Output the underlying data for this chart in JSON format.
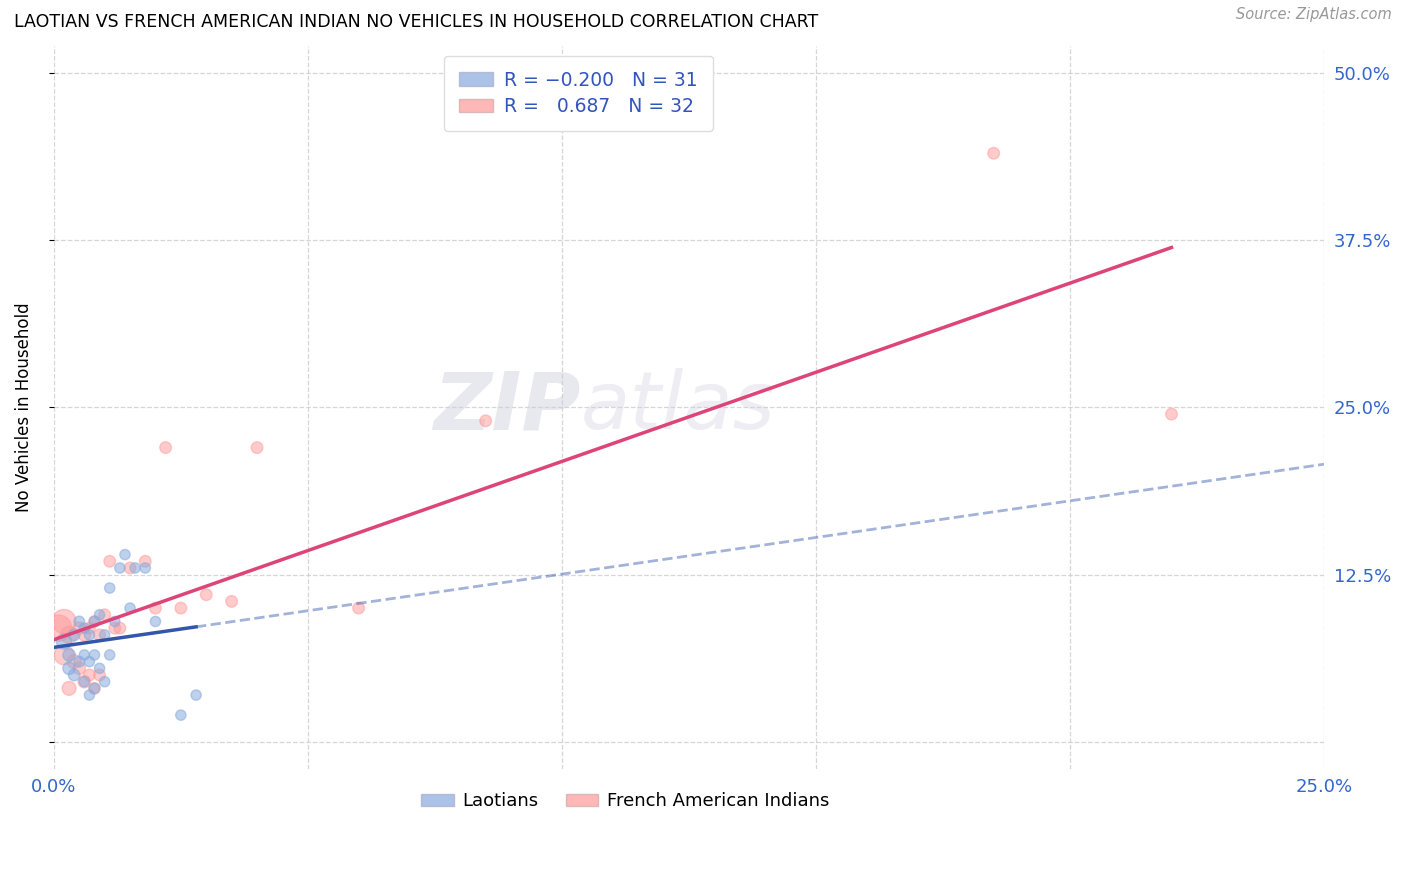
{
  "title": "LAOTIAN VS FRENCH AMERICAN INDIAN NO VEHICLES IN HOUSEHOLD CORRELATION CHART",
  "source": "Source: ZipAtlas.com",
  "ylabel": "No Vehicles in Household",
  "xlim": [
    0.0,
    0.25
  ],
  "ylim": [
    -0.02,
    0.52
  ],
  "ylim_data": [
    0.0,
    0.5
  ],
  "xticks": [
    0.0,
    0.05,
    0.1,
    0.15,
    0.2,
    0.25
  ],
  "yticks_right": [
    0.0,
    0.125,
    0.25,
    0.375,
    0.5
  ],
  "ytick_labels_right": [
    "",
    "12.5%",
    "25.0%",
    "37.5%",
    "50.0%"
  ],
  "xtick_labels": [
    "0.0%",
    "",
    "",
    "",
    "",
    "25.0%"
  ],
  "color_blue": "#88AADD",
  "color_pink": "#FF9999",
  "trendline_blue_color": "#3355AA",
  "trendline_pink_color": "#DD4477",
  "watermark_zip": "ZIP",
  "watermark_atlas": "atlas",
  "laotian_x": [
    0.002,
    0.003,
    0.003,
    0.004,
    0.004,
    0.005,
    0.005,
    0.006,
    0.006,
    0.006,
    0.007,
    0.007,
    0.007,
    0.008,
    0.008,
    0.008,
    0.009,
    0.009,
    0.01,
    0.01,
    0.011,
    0.011,
    0.012,
    0.013,
    0.014,
    0.015,
    0.016,
    0.018,
    0.02,
    0.025,
    0.028
  ],
  "laotian_y": [
    0.075,
    0.065,
    0.055,
    0.08,
    0.05,
    0.09,
    0.06,
    0.085,
    0.065,
    0.045,
    0.08,
    0.06,
    0.035,
    0.09,
    0.065,
    0.04,
    0.095,
    0.055,
    0.08,
    0.045,
    0.115,
    0.065,
    0.09,
    0.13,
    0.14,
    0.1,
    0.13,
    0.13,
    0.09,
    0.02,
    0.035
  ],
  "laotian_sizes": [
    120,
    80,
    80,
    70,
    70,
    60,
    60,
    55,
    55,
    55,
    55,
    55,
    55,
    55,
    55,
    55,
    55,
    55,
    55,
    55,
    55,
    55,
    55,
    55,
    55,
    55,
    55,
    55,
    55,
    55,
    55
  ],
  "french_x": [
    0.001,
    0.002,
    0.002,
    0.003,
    0.003,
    0.004,
    0.005,
    0.005,
    0.006,
    0.006,
    0.007,
    0.007,
    0.008,
    0.008,
    0.009,
    0.009,
    0.01,
    0.011,
    0.012,
    0.013,
    0.015,
    0.018,
    0.02,
    0.022,
    0.025,
    0.03,
    0.035,
    0.04,
    0.06,
    0.085,
    0.185,
    0.22
  ],
  "french_y": [
    0.085,
    0.09,
    0.065,
    0.08,
    0.04,
    0.06,
    0.085,
    0.055,
    0.08,
    0.045,
    0.085,
    0.05,
    0.09,
    0.04,
    0.08,
    0.05,
    0.095,
    0.135,
    0.085,
    0.085,
    0.13,
    0.135,
    0.1,
    0.22,
    0.1,
    0.11,
    0.105,
    0.22,
    0.1,
    0.24,
    0.44,
    0.245
  ],
  "french_sizes": [
    350,
    300,
    200,
    150,
    100,
    100,
    80,
    80,
    80,
    80,
    70,
    70,
    70,
    70,
    70,
    70,
    70,
    70,
    70,
    70,
    70,
    70,
    70,
    70,
    70,
    70,
    70,
    70,
    70,
    70,
    70,
    70
  ]
}
